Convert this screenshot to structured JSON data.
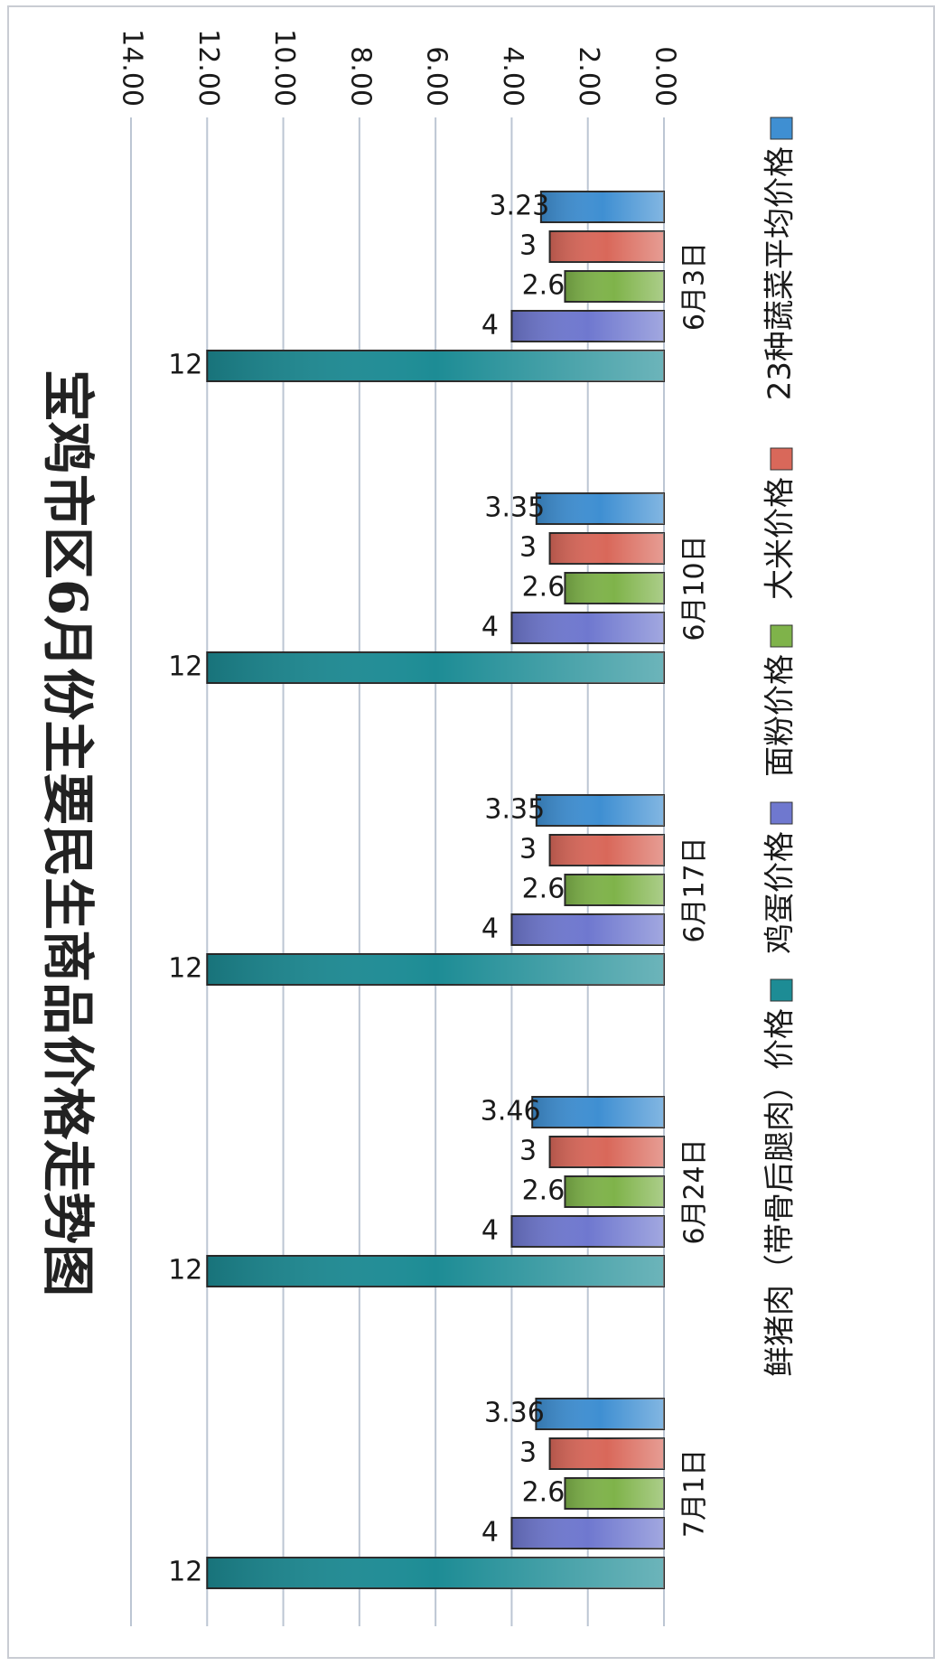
{
  "chart_data": {
    "type": "bar",
    "title": "宝鸡市区6月份主要民生商品价格走势图",
    "categories": [
      "6月3日",
      "6月10日",
      "6月17日",
      "6月24日",
      "7月1日"
    ],
    "series": [
      {
        "name": "23种蔬菜平均价格",
        "values": [
          3.23,
          3.35,
          3.35,
          3.46,
          3.36
        ],
        "labels": [
          "3.23",
          "3.35",
          "3.35",
          "3.46",
          "3.36"
        ],
        "color": "#3f8fd2"
      },
      {
        "name": "大米价格",
        "values": [
          3,
          3,
          3,
          3,
          3
        ],
        "labels": [
          "3",
          "3",
          "3",
          "3",
          "3"
        ],
        "color": "#d9685a"
      },
      {
        "name": "面粉价格",
        "values": [
          2.6,
          2.6,
          2.6,
          2.6,
          2.6
        ],
        "labels": [
          "2.6",
          "2.6",
          "2.6",
          "2.6",
          "2.6"
        ],
        "color": "#7fb34a"
      },
      {
        "name": "鸡蛋价格",
        "values": [
          4,
          4,
          4,
          4,
          4
        ],
        "labels": [
          "4",
          "4",
          "4",
          "4",
          "4"
        ],
        "color": "#6f78cf"
      },
      {
        "name": "鲜猪肉（带骨后腿肉）价格",
        "values": [
          12,
          12,
          12,
          12,
          12
        ],
        "labels": [
          "12",
          "12",
          "12",
          "12",
          "12"
        ],
        "color": "#1d8c95"
      }
    ],
    "ylim": [
      0,
      14
    ],
    "yticks": [
      "0.00",
      "2.00",
      "4.00",
      "6.00",
      "8.00",
      "10.00",
      "12.00",
      "14.00"
    ],
    "grid": true,
    "legend_position": "bottom",
    "orientation": "rotated 90° clockwise"
  }
}
